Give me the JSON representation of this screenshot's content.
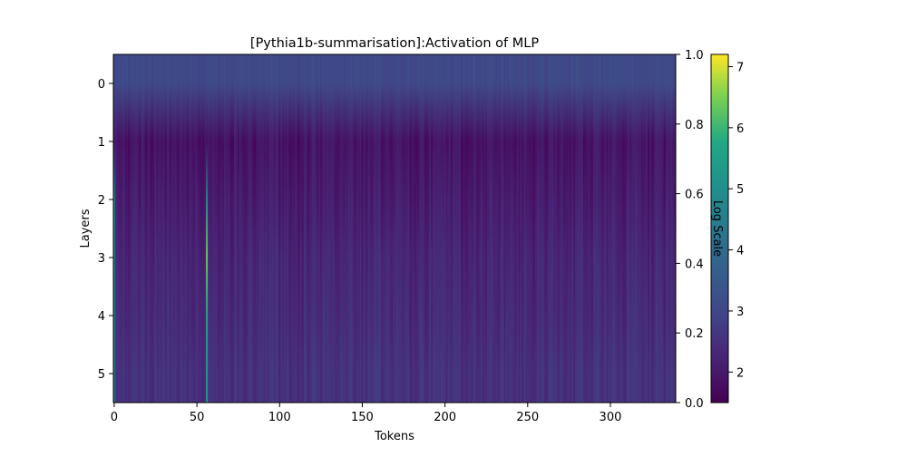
{
  "chart_data": {
    "type": "heatmap",
    "title": "[Pythia1b-summarisation]:Activation of MLP",
    "xlabel": "Tokens",
    "ylabel": "Layers",
    "secondary_ylabel": "Log Scale",
    "x_range": [
      -0.5,
      339.5
    ],
    "y_range": [
      -0.5,
      5.5
    ],
    "secondary_y_range": [
      0.0,
      1.0
    ],
    "x_ticks": [
      0,
      50,
      100,
      150,
      200,
      250,
      300
    ],
    "y_ticks": [
      0,
      1,
      2,
      3,
      4,
      5
    ],
    "secondary_y_ticks": [
      "0.0",
      "0.2",
      "0.4",
      "0.6",
      "0.8",
      "1.0"
    ],
    "colorbar": {
      "colormap": "viridis",
      "range": [
        1.5,
        7.2
      ],
      "ticks": [
        2,
        3,
        4,
        5,
        6,
        7
      ]
    },
    "grid": false,
    "n_tokens": 340,
    "layer_baseline_log_activation": [
      3.05,
      1.85,
      2.05,
      2.25,
      2.35,
      2.5
    ],
    "highlights": [
      {
        "token": 56,
        "layers": [
          2,
          3,
          4,
          5
        ],
        "log_activation": [
          4.8,
          6.4,
          5.6,
          5.2
        ]
      },
      {
        "token": 0,
        "layers": [
          2,
          3,
          4,
          5
        ],
        "log_activation": [
          4.9,
          4.7,
          4.5,
          4.3
        ]
      }
    ]
  }
}
